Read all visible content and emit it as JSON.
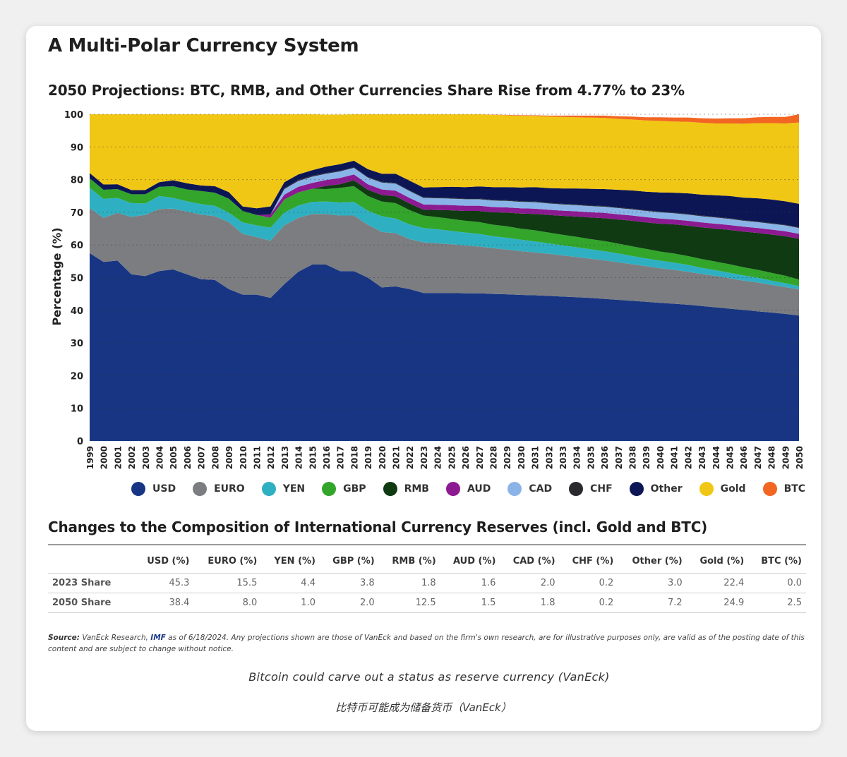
{
  "title": "A Multi-Polar Currency System",
  "chart_data": {
    "type": "area",
    "stacked": true,
    "title": "2050 Projections: BTC, RMB, and Other Currencies Share Rise from 4.77% to 23%",
    "xlabel": "",
    "ylabel": "Percentage (%)",
    "ylim": [
      0,
      100
    ],
    "yticks": [
      "0",
      "10",
      "20",
      "30",
      "40",
      "50",
      "60",
      "70",
      "80",
      "90",
      "100"
    ],
    "x": [
      "1999",
      "2000",
      "2001",
      "2002",
      "2003",
      "2004",
      "2005",
      "2006",
      "2007",
      "2008",
      "2009",
      "2010",
      "2011",
      "2012",
      "2013",
      "2014",
      "2015",
      "2016",
      "2017",
      "2018",
      "2019",
      "2020",
      "2021",
      "2022",
      "2023",
      "2024",
      "2025",
      "2026",
      "2027",
      "2028",
      "2029",
      "2030",
      "2031",
      "2032",
      "2033",
      "2034",
      "2035",
      "2036",
      "2037",
      "2038",
      "2039",
      "2040",
      "2041",
      "2042",
      "2043",
      "2044",
      "2045",
      "2046",
      "2047",
      "2048",
      "2049",
      "2050"
    ],
    "legend_position": "bottom",
    "series": [
      {
        "name": "USD",
        "color": "#173583",
        "values": [
          57.5,
          54.8,
          55.2,
          51.0,
          50.5,
          52.0,
          52.5,
          51.0,
          49.5,
          49.3,
          46.5,
          44.8,
          44.8,
          43.8,
          48.0,
          51.8,
          54.0,
          54.0,
          52.0,
          52.0,
          50.0,
          47.0,
          47.3,
          46.5,
          45.3,
          45.3,
          45.3,
          45.2,
          45.2,
          45.0,
          44.9,
          44.7,
          44.6,
          44.4,
          44.2,
          44.0,
          43.8,
          43.5,
          43.2,
          42.9,
          42.6,
          42.3,
          42.0,
          41.7,
          41.3,
          40.9,
          40.5,
          40.1,
          39.7,
          39.3,
          38.9,
          38.4
        ]
      },
      {
        "name": "EURO",
        "color": "#7c7d80",
        "values": [
          13.8,
          13.5,
          14.6,
          17.6,
          18.7,
          19.0,
          18.6,
          19.2,
          19.8,
          19.5,
          20.5,
          18.6,
          17.6,
          17.5,
          18.0,
          16.5,
          15.5,
          15.5,
          17.0,
          17.0,
          16.2,
          17.0,
          16.3,
          15.3,
          15.5,
          15.2,
          14.9,
          14.6,
          14.3,
          14.0,
          13.7,
          13.4,
          13.1,
          12.9,
          12.6,
          12.3,
          12.0,
          11.8,
          11.5,
          11.2,
          10.9,
          10.6,
          10.4,
          10.1,
          9.8,
          9.6,
          9.3,
          9.0,
          8.8,
          8.5,
          8.2,
          8.0
        ]
      },
      {
        "name": "YEN",
        "color": "#2fb0c2",
        "values": [
          6.2,
          5.8,
          4.6,
          4.2,
          3.5,
          4.0,
          3.3,
          3.2,
          3.2,
          3.2,
          2.9,
          3.5,
          3.6,
          4.0,
          3.9,
          3.8,
          3.7,
          3.8,
          4.0,
          4.2,
          4.3,
          4.8,
          4.5,
          4.5,
          4.4,
          4.3,
          4.1,
          4.0,
          3.9,
          3.7,
          3.6,
          3.5,
          3.4,
          3.2,
          3.1,
          3.0,
          2.9,
          2.8,
          2.7,
          2.5,
          2.4,
          2.3,
          2.2,
          2.1,
          1.9,
          1.8,
          1.7,
          1.6,
          1.5,
          1.3,
          1.2,
          1.0
        ]
      },
      {
        "name": "GBP",
        "color": "#32a52a",
        "values": [
          2.9,
          2.8,
          2.7,
          2.7,
          2.8,
          2.8,
          3.6,
          3.6,
          4.0,
          4.0,
          4.3,
          3.5,
          3.2,
          3.0,
          4.0,
          4.0,
          4.0,
          3.8,
          4.5,
          4.8,
          4.5,
          4.5,
          4.7,
          4.4,
          3.8,
          3.7,
          3.7,
          3.6,
          3.6,
          3.5,
          3.5,
          3.4,
          3.4,
          3.3,
          3.2,
          3.2,
          3.1,
          3.1,
          3.0,
          3.0,
          2.9,
          2.8,
          2.8,
          2.7,
          2.7,
          2.6,
          2.6,
          2.5,
          2.4,
          2.4,
          2.3,
          2.0
        ]
      },
      {
        "name": "RMB",
        "color": "#0f3a12",
        "values": [
          0,
          0,
          0,
          0,
          0,
          0,
          0,
          0,
          0,
          0,
          0,
          0,
          0,
          0,
          0,
          0,
          0,
          1.0,
          1.1,
          1.8,
          1.9,
          2.0,
          2.1,
          2.0,
          1.8,
          2.2,
          2.6,
          3.0,
          3.4,
          3.8,
          4.2,
          4.6,
          5.0,
          5.4,
          5.8,
          6.2,
          6.6,
          7.0,
          7.4,
          7.8,
          8.1,
          8.5,
          8.9,
          9.3,
          9.7,
          10.1,
          10.5,
          10.9,
          11.3,
          11.7,
          12.1,
          12.5
        ]
      },
      {
        "name": "AUD",
        "color": "#8c1a91",
        "values": [
          0,
          0,
          0,
          0,
          0,
          0,
          0,
          0,
          0,
          0,
          0,
          0,
          0,
          1.0,
          1.5,
          1.7,
          1.8,
          1.8,
          1.9,
          1.8,
          1.7,
          1.7,
          1.7,
          1.7,
          1.6,
          1.6,
          1.6,
          1.6,
          1.6,
          1.6,
          1.6,
          1.6,
          1.6,
          1.6,
          1.6,
          1.6,
          1.6,
          1.6,
          1.6,
          1.6,
          1.6,
          1.6,
          1.5,
          1.5,
          1.5,
          1.5,
          1.5,
          1.5,
          1.5,
          1.5,
          1.5,
          1.5
        ]
      },
      {
        "name": "CAD",
        "color": "#8ab4e8",
        "values": [
          0,
          0,
          0,
          0,
          0,
          0,
          0,
          0,
          0,
          0,
          0,
          0,
          0,
          0,
          1.7,
          1.8,
          1.9,
          1.9,
          2.0,
          2.0,
          2.0,
          2.1,
          2.2,
          2.1,
          2.0,
          2.0,
          2.0,
          2.0,
          2.0,
          2.0,
          2.0,
          2.0,
          2.0,
          1.9,
          1.9,
          1.9,
          1.9,
          1.9,
          1.9,
          1.9,
          1.9,
          1.9,
          1.9,
          1.9,
          1.9,
          1.9,
          1.9,
          1.8,
          1.8,
          1.8,
          1.8,
          1.8
        ]
      },
      {
        "name": "CHF",
        "color": "#2a2a2e",
        "values": [
          0,
          0,
          0,
          0,
          0,
          0,
          0,
          0,
          0,
          0,
          0,
          0,
          0,
          0,
          0.3,
          0.3,
          0.3,
          0.2,
          0.2,
          0.2,
          0.2,
          0.2,
          0.2,
          0.2,
          0.2,
          0.2,
          0.2,
          0.2,
          0.2,
          0.2,
          0.2,
          0.2,
          0.2,
          0.2,
          0.2,
          0.2,
          0.2,
          0.2,
          0.2,
          0.2,
          0.2,
          0.2,
          0.2,
          0.2,
          0.2,
          0.2,
          0.2,
          0.2,
          0.2,
          0.2,
          0.2,
          0.2
        ]
      },
      {
        "name": "Other",
        "color": "#0c1655",
        "values": [
          1.6,
          1.6,
          1.5,
          1.3,
          1.3,
          1.4,
          1.8,
          1.9,
          1.7,
          2.0,
          2.0,
          1.4,
          2.0,
          2.5,
          1.8,
          1.7,
          1.7,
          2.0,
          2.0,
          2.0,
          2.4,
          2.5,
          2.8,
          3.0,
          3.0,
          3.2,
          3.4,
          3.5,
          3.7,
          3.9,
          4.0,
          4.2,
          4.4,
          4.5,
          4.7,
          4.9,
          5.1,
          5.2,
          5.4,
          5.6,
          5.7,
          5.9,
          6.1,
          6.3,
          6.4,
          6.6,
          6.8,
          6.9,
          7.1,
          7.2,
          7.2,
          7.2
        ]
      },
      {
        "name": "Gold",
        "color": "#f1c715",
        "values": [
          18.0,
          21.5,
          21.4,
          23.2,
          23.2,
          20.8,
          20.2,
          21.1,
          21.8,
          22.0,
          23.8,
          28.2,
          28.8,
          28.2,
          20.8,
          18.4,
          17.1,
          15.9,
          15.2,
          14.2,
          16.8,
          18.2,
          18.2,
          20.3,
          22.4,
          22.3,
          22.2,
          22.3,
          22.1,
          22.1,
          22.0,
          21.9,
          21.8,
          21.9,
          21.9,
          21.8,
          21.8,
          21.8,
          21.7,
          21.7,
          21.8,
          21.9,
          21.8,
          21.9,
          22.0,
          22.0,
          22.2,
          22.6,
          23.0,
          23.4,
          23.8,
          24.9
        ]
      },
      {
        "name": "BTC",
        "color": "#f26522",
        "values": [
          0,
          0,
          0,
          0,
          0,
          0,
          0,
          0,
          0,
          0,
          0,
          0,
          0,
          0,
          0,
          0,
          0,
          0,
          0,
          0,
          0,
          0,
          0,
          0,
          0,
          0,
          0,
          0,
          0,
          0.1,
          0.1,
          0.2,
          0.2,
          0.3,
          0.4,
          0.5,
          0.6,
          0.7,
          0.8,
          0.9,
          1.0,
          1.1,
          1.2,
          1.3,
          1.4,
          1.5,
          1.6,
          1.7,
          1.8,
          1.9,
          2.0,
          2.5
        ]
      }
    ]
  },
  "table": {
    "title": "Changes to the Composition of International Currency Reserves (incl. Gold and BTC)",
    "headers": [
      "",
      "USD (%)",
      "EURO (%)",
      "YEN (%)",
      "GBP (%)",
      "RMB (%)",
      "AUD (%)",
      "CAD (%)",
      "CHF (%)",
      "Other (%)",
      "Gold (%)",
      "BTC (%)"
    ],
    "rows": [
      [
        "2023 Share",
        "45.3",
        "15.5",
        "4.4",
        "3.8",
        "1.8",
        "1.6",
        "2.0",
        "0.2",
        "3.0",
        "22.4",
        "0.0"
      ],
      [
        "2050 Share",
        "38.4",
        "8.0",
        "1.0",
        "2.0",
        "12.5",
        "1.5",
        "1.8",
        "0.2",
        "7.2",
        "24.9",
        "2.5"
      ]
    ]
  },
  "source": {
    "label": "Source:",
    "text_a": " VanEck Research, ",
    "imf": "IMF",
    "text_b": " as of 6/18/2024. Any projections shown are those of VanEck and based on the firm's own research, are for illustrative purposes only, are valid as of the posting date of this content and are subject to change without notice."
  },
  "caption_en": "Bitcoin could carve out a status as reserve currency (VanEck)",
  "caption_zh": "比特币可能成为储备货币（VanEck）"
}
